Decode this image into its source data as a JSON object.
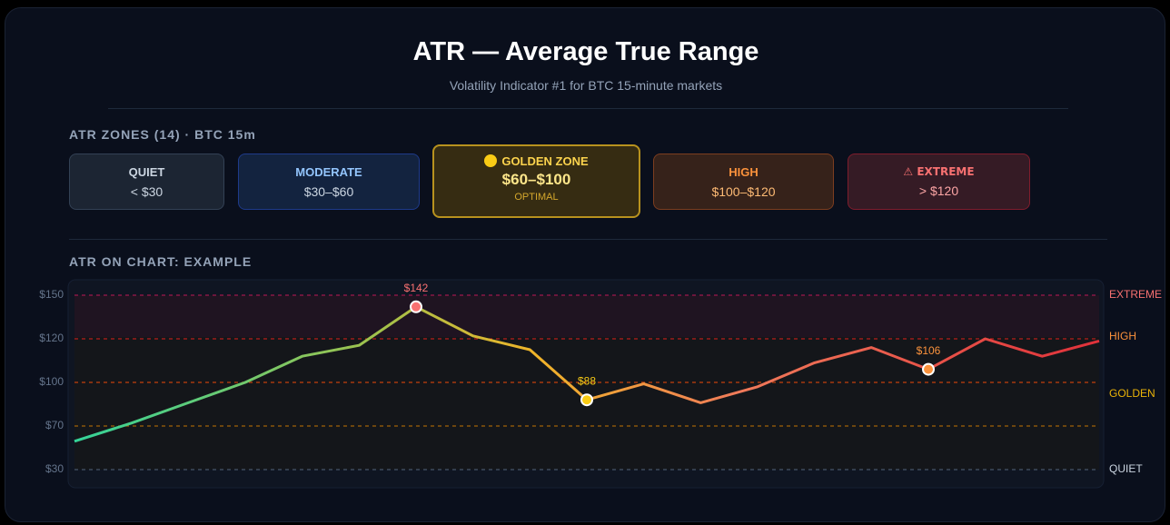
{
  "header": {
    "title": "ATR — Average True Range",
    "subtitle": "Volatility Indicator #1 for BTC 15-minute markets"
  },
  "zones": {
    "heading": "ATR ZONES (14) · BTC 15m",
    "items": [
      {
        "name": "QUIET",
        "range": "< $30"
      },
      {
        "name": "MODERATE",
        "range": "$30–$60"
      },
      {
        "name": "GOLDEN ZONE",
        "range": "$60–$100",
        "note": "OPTIMAL"
      },
      {
        "name": "HIGH",
        "range": "$100–$120"
      },
      {
        "name": "⚠ EXTREME",
        "range": "> $120"
      }
    ]
  },
  "chart_data": {
    "type": "line",
    "title": "ATR ON CHART: EXAMPLE",
    "categories": [
      null,
      null,
      null,
      null,
      null,
      null,
      null,
      null,
      null,
      null,
      null,
      null,
      null,
      null,
      null,
      null,
      null,
      null,
      null
    ],
    "series": [
      {
        "values": [
          56,
          72,
          86,
          100,
          112,
          117,
          142,
          122,
          115,
          88,
          99,
          86,
          97,
          109,
          116,
          106,
          120,
          112,
          119
        ],
        "value_labels": [
          null,
          null,
          null,
          null,
          null,
          null,
          "$142",
          null,
          null,
          "$88",
          null,
          null,
          null,
          null,
          null,
          "$106",
          null,
          null,
          null
        ]
      }
    ],
    "ylim": [
      30,
      150
    ],
    "yticks": [
      {
        "value": 30,
        "label": "$30"
      },
      {
        "value": 70,
        "label": "$70"
      },
      {
        "value": 100,
        "label": "$100"
      },
      {
        "value": 120,
        "label": "$120"
      },
      {
        "value": 150,
        "label": "$150"
      }
    ],
    "zone_labels": [
      "QUIET",
      "GOLDEN",
      "HIGH",
      "EXTREME"
    ],
    "grid": true
  }
}
